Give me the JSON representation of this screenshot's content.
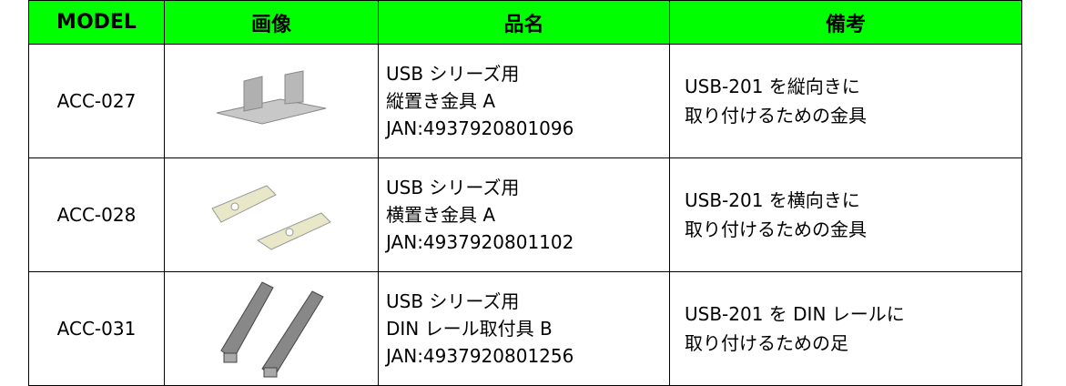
{
  "table": {
    "header": [
      "MODEL",
      "画像",
      "品名",
      "備考"
    ],
    "rows": [
      {
        "model": "ACC-027",
        "name": [
          "USB シリーズ用",
          "縦置き金具 A",
          "JAN:4937920801096"
        ],
        "note": [
          "USB-201 を縦向きに",
          "取り付けるための金具"
        ]
      },
      {
        "model": "ACC-028",
        "name": [
          "USB シリーズ用",
          "横置き金具 A",
          "JAN:4937920801102"
        ],
        "note": [
          "USB-201 を横向きに",
          "取り付けるための金具"
        ]
      },
      {
        "model": "ACC-031",
        "name": [
          "USB シリーズ用",
          "DIN レール取付具 B",
          "JAN:4937920801256"
        ],
        "note": [
          "USB-201 を DIN レールに",
          "取り付けるための足"
        ]
      }
    ]
  }
}
